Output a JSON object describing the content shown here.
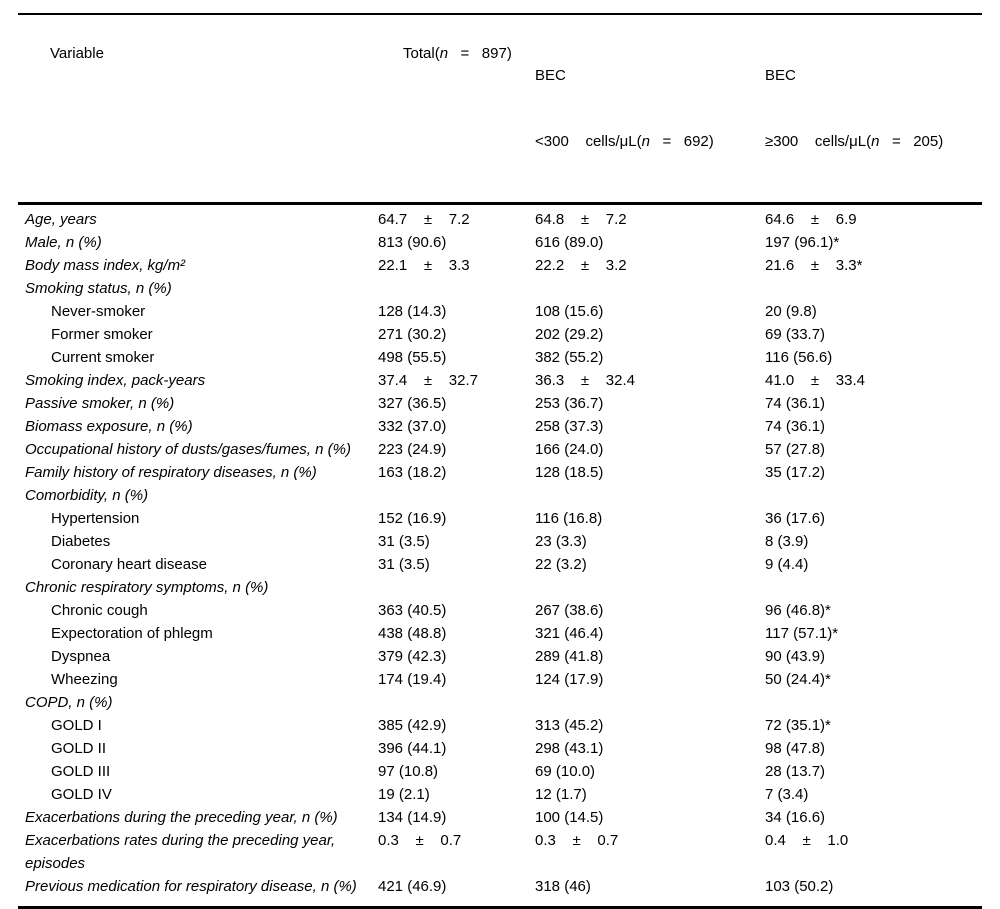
{
  "table": {
    "header": {
      "variable_label": "Variable",
      "total": {
        "pre": "Total(",
        "n_italic": "n",
        "post": "   =   897)"
      },
      "bec_low": {
        "line1": "BEC",
        "pre": "<300    cells/μL(",
        "n_italic": "n",
        "post": "   =   692)"
      },
      "bec_high": {
        "line1": "BEC",
        "pre": "≥300    cells/μL(",
        "n_italic": "n",
        "post": "   =   205)"
      }
    },
    "rows": [
      {
        "label": "Age, years",
        "indent": false,
        "total": "64.7    ±    7.2",
        "bec_low": "64.8    ±    7.2",
        "bec_high": "64.6    ±    6.9"
      },
      {
        "label": "Male, n (%)",
        "indent": false,
        "total": "813 (90.6)",
        "bec_low": "616 (89.0)",
        "bec_high": "197 (96.1)*"
      },
      {
        "label": "Body mass index, kg/m²",
        "indent": false,
        "total": "22.1    ±    3.3",
        "bec_low": "22.2    ±    3.2",
        "bec_high": "21.6    ±    3.3*"
      },
      {
        "label": "Smoking status, n (%)",
        "indent": false,
        "total": "",
        "bec_low": "",
        "bec_high": ""
      },
      {
        "label": "Never-smoker",
        "indent": true,
        "total": "128 (14.3)",
        "bec_low": "108 (15.6)",
        "bec_high": "20 (9.8)"
      },
      {
        "label": "Former smoker",
        "indent": true,
        "total": "271 (30.2)",
        "bec_low": "202 (29.2)",
        "bec_high": "69 (33.7)"
      },
      {
        "label": "Current smoker",
        "indent": true,
        "total": "498 (55.5)",
        "bec_low": "382 (55.2)",
        "bec_high": "116 (56.6)"
      },
      {
        "label": "Smoking index, pack-years",
        "indent": false,
        "total": "37.4    ±    32.7",
        "bec_low": "36.3    ±    32.4",
        "bec_high": "41.0    ±    33.4"
      },
      {
        "label": "Passive smoker, n (%)",
        "indent": false,
        "total": "327 (36.5)",
        "bec_low": "253 (36.7)",
        "bec_high": "74 (36.1)"
      },
      {
        "label": "Biomass exposure, n (%)",
        "indent": false,
        "total": "332 (37.0)",
        "bec_low": "258 (37.3)",
        "bec_high": "74 (36.1)"
      },
      {
        "label": "Occupational history of dusts/gases/fumes, n (%)",
        "indent": false,
        "total": "223 (24.9)",
        "bec_low": "166 (24.0)",
        "bec_high": "57 (27.8)"
      },
      {
        "label": "Family history of respiratory diseases, n (%)",
        "indent": false,
        "total": "163 (18.2)",
        "bec_low": "128 (18.5)",
        "bec_high": "35 (17.2)"
      },
      {
        "label": "Comorbidity, n (%)",
        "indent": false,
        "total": "",
        "bec_low": "",
        "bec_high": ""
      },
      {
        "label": "Hypertension",
        "indent": true,
        "total": "152 (16.9)",
        "bec_low": "116 (16.8)",
        "bec_high": "36 (17.6)"
      },
      {
        "label": "Diabetes",
        "indent": true,
        "total": "31 (3.5)",
        "bec_low": "23 (3.3)",
        "bec_high": "8 (3.9)"
      },
      {
        "label": "Coronary heart disease",
        "indent": true,
        "total": "31 (3.5)",
        "bec_low": "22 (3.2)",
        "bec_high": "9 (4.4)"
      },
      {
        "label": "Chronic respiratory symptoms, n (%)",
        "indent": false,
        "total": "",
        "bec_low": "",
        "bec_high": ""
      },
      {
        "label": "Chronic cough",
        "indent": true,
        "total": "363 (40.5)",
        "bec_low": "267 (38.6)",
        "bec_high": "96 (46.8)*"
      },
      {
        "label": "Expectoration of phlegm",
        "indent": true,
        "total": "438 (48.8)",
        "bec_low": "321 (46.4)",
        "bec_high": "117 (57.1)*"
      },
      {
        "label": "Dyspnea",
        "indent": true,
        "total": "379 (42.3)",
        "bec_low": "289 (41.8)",
        "bec_high": "90 (43.9)"
      },
      {
        "label": "Wheezing",
        "indent": true,
        "total": "174 (19.4)",
        "bec_low": "124 (17.9)",
        "bec_high": "50 (24.4)*"
      },
      {
        "label": "COPD, n (%)",
        "indent": false,
        "total": "",
        "bec_low": "",
        "bec_high": ""
      },
      {
        "label": "GOLD I",
        "indent": true,
        "total": "385 (42.9)",
        "bec_low": "313 (45.2)",
        "bec_high": "72 (35.1)*"
      },
      {
        "label": "GOLD II",
        "indent": true,
        "total": "396 (44.1)",
        "bec_low": "298 (43.1)",
        "bec_high": "98 (47.8)"
      },
      {
        "label": "GOLD III",
        "indent": true,
        "total": "97 (10.8)",
        "bec_low": "69 (10.0)",
        "bec_high": "28 (13.7)"
      },
      {
        "label": "GOLD IV",
        "indent": true,
        "total": "19 (2.1)",
        "bec_low": "12 (1.7)",
        "bec_high": "7 (3.4)"
      },
      {
        "label": "Exacerbations during the preceding year, n (%)",
        "indent": false,
        "total": "134 (14.9)",
        "bec_low": "100 (14.5)",
        "bec_high": "34 (16.6)"
      },
      {
        "label": "Exacerbations rates during the preceding year, episodes",
        "indent": false,
        "total": "0.3    ±    0.7",
        "bec_low": "0.3    ±    0.7",
        "bec_high": "0.4    ±    1.0"
      },
      {
        "label": "Previous medication for respiratory disease, n (%)",
        "indent": false,
        "total": "421 (46.9)",
        "bec_low": "318 (46)",
        "bec_high": "103 (50.2)"
      }
    ]
  }
}
